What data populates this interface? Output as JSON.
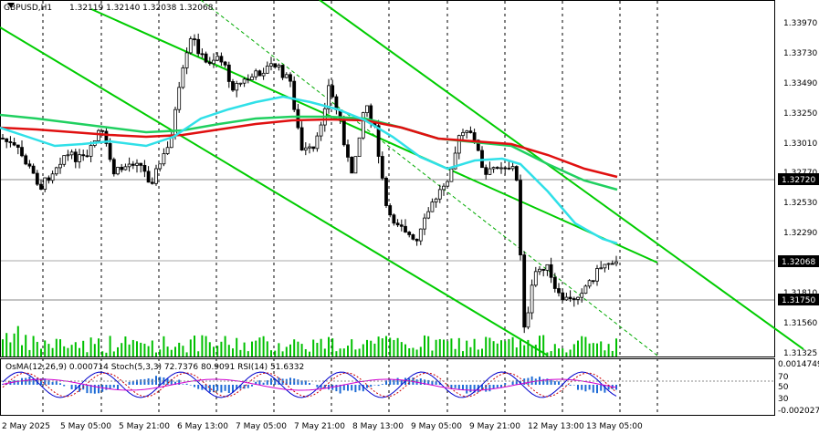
{
  "window": {
    "symbol_title": "GBPUSD,H1",
    "ohlc": "1.32119 1.32140 1.32038 1.32068"
  },
  "price_axis": {
    "labels": [
      "1.33970",
      "1.33730",
      "1.33490",
      "1.33250",
      "1.33010",
      "1.32770",
      "1.32530",
      "1.32290",
      "1.31810",
      "1.31560",
      "1.31325"
    ],
    "current_price_tag": "1.32068",
    "level_tag_1": "1.32720",
    "level_tag_2": "1.31750"
  },
  "indicator_panel": {
    "title": "OsMA(12,26,9) 0.000714  Stoch(5,3,3) 72.7376 80.9091  RSI(14) 51.6332",
    "axis_labels": [
      "0.0014749",
      "70",
      "50",
      "30",
      "-0.002027"
    ]
  },
  "time_axis": {
    "labels": [
      "2 May 2025",
      "5 May 05:00",
      "5 May 21:00",
      "6 May 13:00",
      "7 May 05:00",
      "7 May 21:00",
      "8 May 13:00",
      "9 May 05:00",
      "9 May 21:00",
      "12 May 13:00",
      "13 May 05:00"
    ]
  },
  "colors": {
    "background": "#ffffff",
    "candles": "#000000",
    "volume": "#00c000",
    "channel": "#00cc00",
    "ma_red": "#e01010",
    "ma_green": "#20d060",
    "ma_cyan": "#30e0e8",
    "osma": "#1e6bd6",
    "stoch_main": "#0000cc",
    "stoch_signal": "#cc0000",
    "rsi": "#d000d0"
  }
}
